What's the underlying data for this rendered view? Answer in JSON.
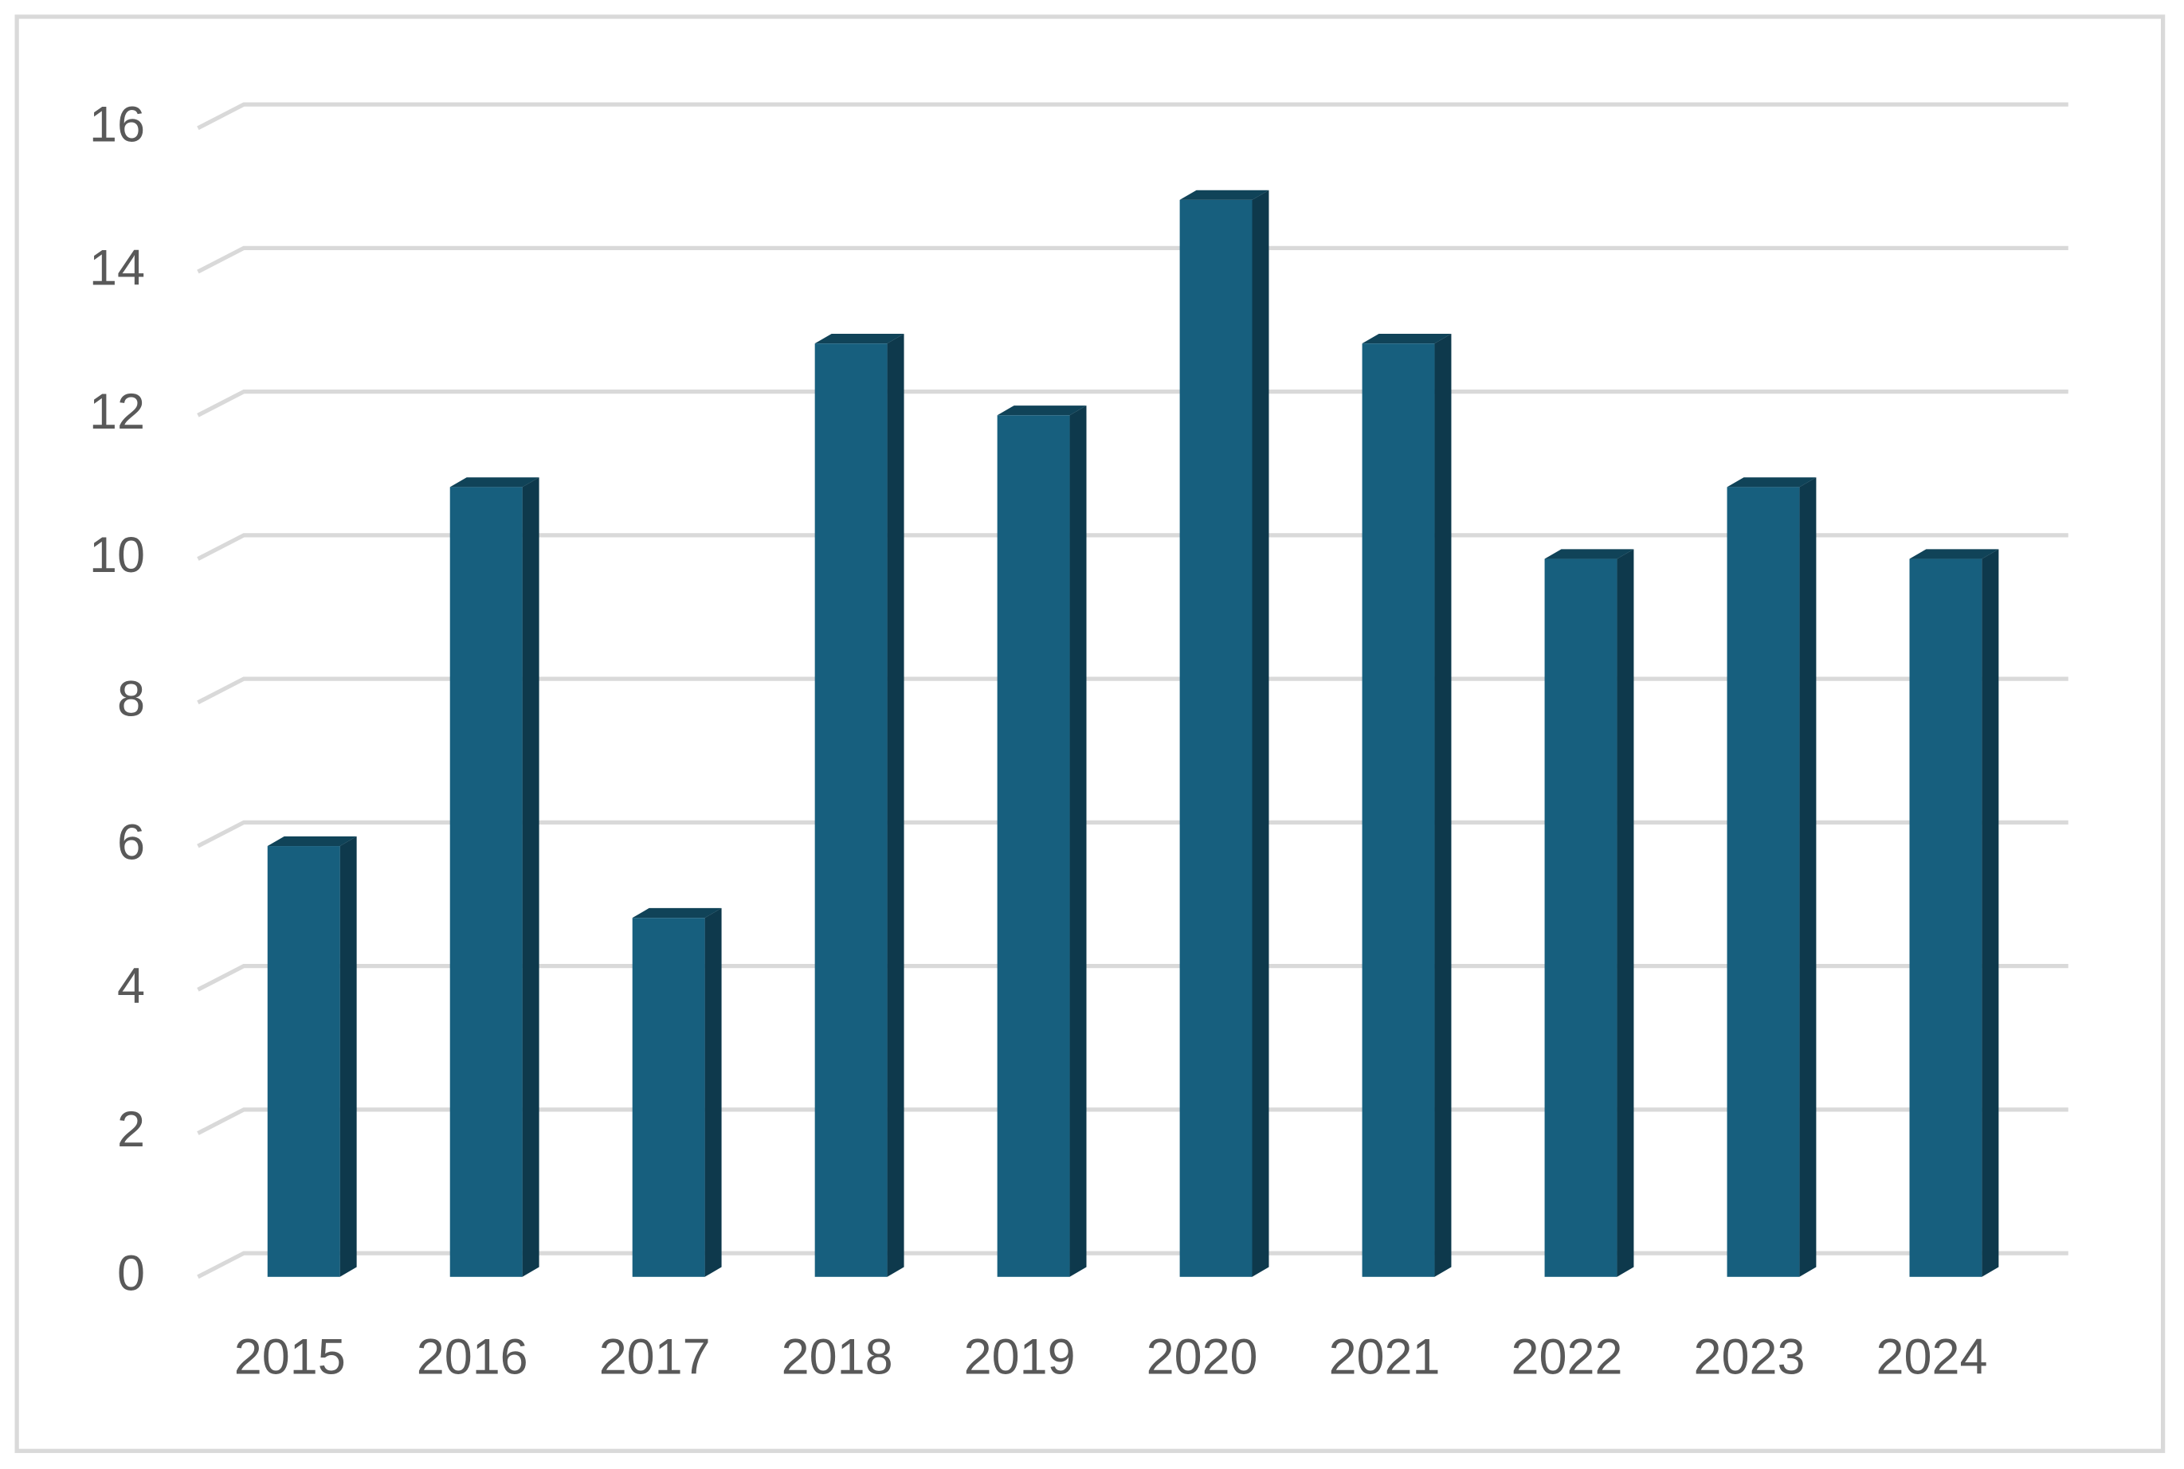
{
  "chart_data": {
    "type": "bar",
    "categories": [
      "2015",
      "2016",
      "2017",
      "2018",
      "2019",
      "2020",
      "2021",
      "2022",
      "2023",
      "2024"
    ],
    "values": [
      6,
      11,
      5,
      13,
      12,
      15,
      13,
      10,
      11,
      10
    ],
    "color": "#175f7e",
    "ylim": [
      0,
      16
    ],
    "yticks": [
      0,
      2,
      4,
      6,
      8,
      10,
      12,
      14,
      16
    ],
    "grid": true
  }
}
